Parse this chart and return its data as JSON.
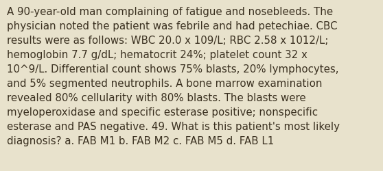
{
  "background_color": "#e8e2cc",
  "text_color": "#3a3020",
  "font_size": 10.8,
  "font_family": "DejaVu Sans",
  "lines": [
    "A 90-year-old man complaining of fatigue and nosebleeds. The",
    "physician noted the patient was febrile and had petechiae. CBC",
    "results were as follows: WBC 20.0 x 109/L; RBC 2.58 x 1012/L;",
    "hemoglobin 7.7 g/dL; hematocrit 24%; platelet count 32 x",
    "10^9/L. Differential count shows 75% blasts, 20% lymphocytes,",
    "and 5% segmented neutrophils. A bone marrow examination",
    "revealed 80% cellularity with 80% blasts. The blasts were",
    "myeloperoxidase and specific esterase positive; nonspecific",
    "esterase and PAS negative. 49. What is this patient's most likely",
    "diagnosis? a. FAB M1 b. FAB M2 c. FAB M5 d. FAB L1"
  ]
}
